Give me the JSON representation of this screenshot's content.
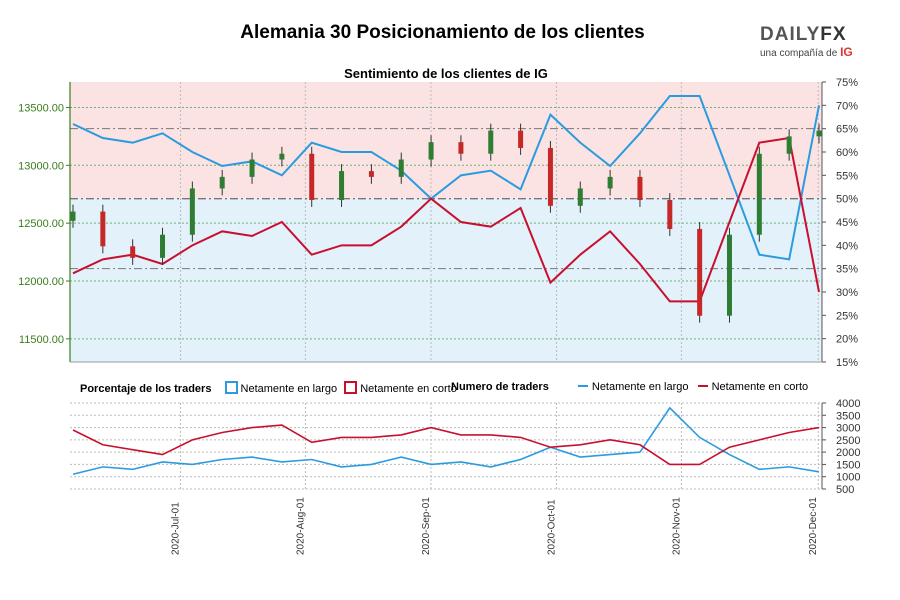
{
  "header": {
    "title": "Alemania 30 Posicionamiento de los clientes",
    "subtitle": "Sentimiento de los clientes de IG"
  },
  "logo": {
    "brand": "DAILYFX",
    "brand_a": "DAILY",
    "brand_b": "FX",
    "tagline": "una compañía de",
    "tagline_brand": "IG"
  },
  "legend": {
    "pct_title": "Porcentaje de los traders",
    "num_title": "Numero de traders",
    "long_label": "Netamente en largo",
    "short_label": "Netamente en corto"
  },
  "colors": {
    "long": "#2b9be0",
    "short": "#c8102e",
    "up_candle": "#2e7d32",
    "down_candle": "#c62828",
    "long_fill": "#e3f1fb",
    "short_fill": "#fbe3e3",
    "price_axis": "#3a7d1a"
  },
  "chart_data": [
    {
      "type": "candlestick",
      "title": "Sentimiento de los clientes de IG",
      "price_axis": {
        "side": "left",
        "ylim": [
          11300,
          13720
        ],
        "ticks": [
          11500,
          12000,
          12500,
          13000,
          13500
        ],
        "tick_labels": [
          "11500.00",
          "12000.00",
          "12500.00",
          "13000.00",
          "13500.00"
        ]
      },
      "percent_axis": {
        "side": "right",
        "ylim": [
          15,
          75
        ],
        "ticks": [
          15,
          20,
          25,
          30,
          35,
          40,
          45,
          50,
          55,
          60,
          65,
          70,
          75
        ],
        "tick_labels": [
          "15%",
          "20%",
          "25%",
          "30%",
          "35%",
          "40%",
          "45%",
          "50%",
          "55%",
          "60%",
          "65%",
          "70%",
          "75%"
        ]
      },
      "reference_lines": [
        50,
        35,
        65
      ],
      "dates": [
        "2020-06-09",
        "2020-06-16",
        "2020-06-23",
        "2020-06-30",
        "2020-07-07",
        "2020-07-14",
        "2020-07-21",
        "2020-07-28",
        "2020-08-04",
        "2020-08-11",
        "2020-08-18",
        "2020-08-25",
        "2020-09-01",
        "2020-09-08",
        "2020-09-15",
        "2020-09-22",
        "2020-09-29",
        "2020-10-06",
        "2020-10-13",
        "2020-10-20",
        "2020-10-27",
        "2020-11-03",
        "2020-11-10",
        "2020-11-17",
        "2020-11-24",
        "2020-12-01"
      ],
      "price_close": [
        12600,
        12300,
        12200,
        12400,
        12800,
        12900,
        13050,
        13100,
        12700,
        12950,
        12900,
        13050,
        13200,
        13100,
        13300,
        13150,
        12650,
        12800,
        12900,
        12700,
        12450,
        11700,
        12400,
        13100,
        13250,
        13300
      ],
      "series": [
        {
          "name": "Netamente en largo",
          "values": [
            66,
            63,
            62,
            64,
            60,
            57,
            58,
            55,
            62,
            60,
            60,
            56,
            50,
            55,
            56,
            52,
            68,
            62,
            57,
            64,
            72,
            72,
            55,
            38,
            37,
            70
          ]
        },
        {
          "name": "Netamente en corto",
          "values": [
            34,
            37,
            38,
            36,
            40,
            43,
            42,
            45,
            38,
            40,
            40,
            44,
            50,
            45,
            44,
            48,
            32,
            38,
            43,
            36,
            28,
            28,
            45,
            62,
            63,
            30
          ]
        }
      ]
    },
    {
      "type": "line",
      "title": "Numero de traders",
      "ylim": [
        500,
        4000
      ],
      "ticks": [
        500,
        1000,
        1500,
        2000,
        2500,
        3000,
        3500,
        4000
      ],
      "tick_labels": [
        "500",
        "1000",
        "1500",
        "2000",
        "2500",
        "3000",
        "3500",
        "4000"
      ],
      "x_tick_labels": [
        "2020-Jul-01",
        "2020-Aug-01",
        "2020-Sep-01",
        "2020-Oct-01",
        "2020-Nov-01",
        "2020-Dec-01"
      ],
      "series": [
        {
          "name": "Netamente en largo",
          "values": [
            1100,
            1400,
            1300,
            1600,
            1500,
            1700,
            1800,
            1600,
            1700,
            1400,
            1500,
            1800,
            1500,
            1600,
            1400,
            1700,
            2200,
            1800,
            1900,
            2000,
            3800,
            2600,
            1900,
            1300,
            1400,
            1200
          ]
        },
        {
          "name": "Netamente en corto",
          "values": [
            2900,
            2300,
            2100,
            1900,
            2500,
            2800,
            3000,
            3100,
            2400,
            2600,
            2600,
            2700,
            3000,
            2700,
            2700,
            2600,
            2200,
            2300,
            2500,
            2300,
            1500,
            1500,
            2200,
            2500,
            2800,
            3000
          ]
        }
      ]
    }
  ]
}
